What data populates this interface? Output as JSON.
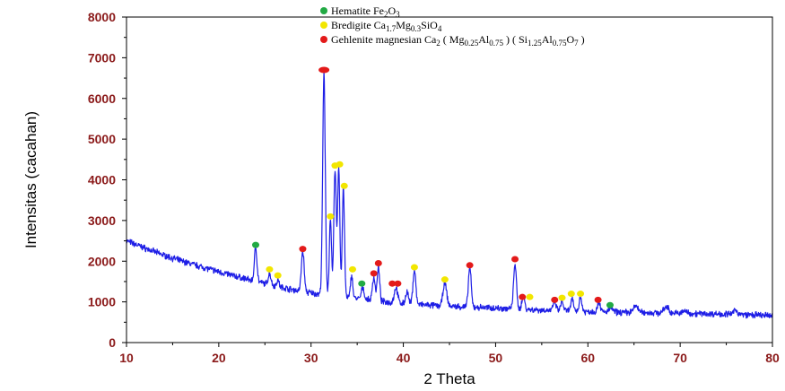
{
  "chart_data": {
    "type": "line",
    "xlabel": "2 Theta",
    "ylabel": "Intensitas (cacahan)",
    "xlim": [
      10,
      80
    ],
    "ylim": [
      0,
      8000
    ],
    "x_ticks": [
      10,
      20,
      30,
      40,
      50,
      60,
      70,
      80
    ],
    "y_ticks": [
      0,
      1000,
      2000,
      3000,
      4000,
      5000,
      6000,
      7000,
      8000
    ],
    "line_color": "#1e1ee6",
    "legend": [
      {
        "name": "hematite",
        "color": "#22aa44",
        "parts": [
          {
            "t": "Hematite Fe",
            "s": false
          },
          {
            "t": "2",
            "s": true
          },
          {
            "t": "O",
            "s": false
          },
          {
            "t": "3",
            "s": true
          }
        ]
      },
      {
        "name": "bredigite",
        "color": "#f2e600",
        "parts": [
          {
            "t": "Bredigite Ca",
            "s": false
          },
          {
            "t": "1.7",
            "s": true
          },
          {
            "t": "Mg",
            "s": false
          },
          {
            "t": "0.3",
            "s": true
          },
          {
            "t": "SiO",
            "s": false
          },
          {
            "t": "4",
            "s": true
          }
        ]
      },
      {
        "name": "gehlenite",
        "color": "#e31a1a",
        "parts": [
          {
            "t": "Gehlenite magnesian Ca",
            "s": false
          },
          {
            "t": "2",
            "s": true
          },
          {
            "t": " ( Mg",
            "s": false
          },
          {
            "t": "0.25",
            "s": true
          },
          {
            "t": "Al",
            "s": false
          },
          {
            "t": "0.75",
            "s": true
          },
          {
            "t": " ) ( Si",
            "s": false
          },
          {
            "t": "1.25",
            "s": true
          },
          {
            "t": "Al",
            "s": false
          },
          {
            "t": "0.75",
            "s": true
          },
          {
            "t": "O",
            "s": false
          },
          {
            "t": "7",
            "s": true
          },
          {
            "t": " )",
            "s": false
          }
        ]
      }
    ],
    "baseline": [
      [
        10,
        2500
      ],
      [
        12,
        2320
      ],
      [
        14,
        2150
      ],
      [
        16,
        2000
      ],
      [
        18,
        1870
      ],
      [
        20,
        1740
      ],
      [
        22,
        1620
      ],
      [
        24,
        1500
      ],
      [
        26,
        1400
      ],
      [
        28,
        1300
      ],
      [
        30,
        1220
      ],
      [
        32,
        1150
      ],
      [
        35,
        1080
      ],
      [
        38,
        1000
      ],
      [
        40,
        960
      ],
      [
        44,
        900
      ],
      [
        50,
        850
      ],
      [
        55,
        800
      ],
      [
        60,
        760
      ],
      [
        65,
        740
      ],
      [
        70,
        720
      ],
      [
        75,
        700
      ],
      [
        80,
        660
      ]
    ],
    "peaks": [
      {
        "x": 24.0,
        "y": 2350,
        "w": 0.14
      },
      {
        "x": 25.5,
        "y": 1700,
        "w": 0.15
      },
      {
        "x": 26.4,
        "y": 1550,
        "w": 0.12
      },
      {
        "x": 29.1,
        "y": 2250,
        "w": 0.15
      },
      {
        "x": 31.4,
        "y": 6600,
        "w": 0.14
      },
      {
        "x": 32.1,
        "y": 3000,
        "w": 0.12
      },
      {
        "x": 32.6,
        "y": 4250,
        "w": 0.13
      },
      {
        "x": 33.0,
        "y": 4300,
        "w": 0.12
      },
      {
        "x": 33.5,
        "y": 3800,
        "w": 0.12
      },
      {
        "x": 34.4,
        "y": 1650,
        "w": 0.12
      },
      {
        "x": 35.6,
        "y": 1350,
        "w": 0.15
      },
      {
        "x": 36.8,
        "y": 1600,
        "w": 0.15
      },
      {
        "x": 37.3,
        "y": 1850,
        "w": 0.13
      },
      {
        "x": 39.2,
        "y": 1350,
        "w": 0.18
      },
      {
        "x": 40.4,
        "y": 1250,
        "w": 0.15
      },
      {
        "x": 41.2,
        "y": 1800,
        "w": 0.15
      },
      {
        "x": 44.5,
        "y": 1450,
        "w": 0.2
      },
      {
        "x": 47.2,
        "y": 1850,
        "w": 0.15
      },
      {
        "x": 52.1,
        "y": 1950,
        "w": 0.15
      },
      {
        "x": 53.0,
        "y": 1150,
        "w": 0.15
      },
      {
        "x": 56.4,
        "y": 1000,
        "w": 0.15
      },
      {
        "x": 57.2,
        "y": 1000,
        "w": 0.15
      },
      {
        "x": 58.3,
        "y": 1050,
        "w": 0.15
      },
      {
        "x": 59.2,
        "y": 1100,
        "w": 0.15
      },
      {
        "x": 61.2,
        "y": 1000,
        "w": 0.15
      },
      {
        "x": 62.5,
        "y": 850,
        "w": 0.2
      },
      {
        "x": 65.2,
        "y": 900,
        "w": 0.25
      },
      {
        "x": 68.5,
        "y": 880,
        "w": 0.25
      },
      {
        "x": 70.5,
        "y": 780,
        "w": 0.2
      },
      {
        "x": 76.0,
        "y": 800,
        "w": 0.2
      }
    ],
    "markers": [
      {
        "x": 24.0,
        "y": 2400,
        "phase": "hematite"
      },
      {
        "x": 25.5,
        "y": 1800,
        "phase": "bredigite"
      },
      {
        "x": 26.4,
        "y": 1650,
        "phase": "bredigite"
      },
      {
        "x": 29.1,
        "y": 2300,
        "phase": "gehlenite"
      },
      {
        "x": 31.4,
        "y": 6700,
        "phase": "gehlenite"
      },
      {
        "x": 32.1,
        "y": 3100,
        "phase": "bredigite"
      },
      {
        "x": 32.6,
        "y": 4350,
        "phase": "bredigite"
      },
      {
        "x": 33.1,
        "y": 4380,
        "phase": "bredigite"
      },
      {
        "x": 33.6,
        "y": 3850,
        "phase": "bredigite"
      },
      {
        "x": 34.5,
        "y": 1800,
        "phase": "bredigite"
      },
      {
        "x": 35.5,
        "y": 1450,
        "phase": "hematite"
      },
      {
        "x": 36.8,
        "y": 1700,
        "phase": "gehlenite"
      },
      {
        "x": 37.3,
        "y": 1950,
        "phase": "gehlenite"
      },
      {
        "x": 38.8,
        "y": 1450,
        "phase": "gehlenite"
      },
      {
        "x": 39.4,
        "y": 1450,
        "phase": "gehlenite"
      },
      {
        "x": 41.2,
        "y": 1850,
        "phase": "bredigite"
      },
      {
        "x": 44.5,
        "y": 1550,
        "phase": "bredigite"
      },
      {
        "x": 47.2,
        "y": 1900,
        "phase": "gehlenite"
      },
      {
        "x": 52.1,
        "y": 2050,
        "phase": "gehlenite"
      },
      {
        "x": 52.9,
        "y": 1120,
        "phase": "gehlenite"
      },
      {
        "x": 53.7,
        "y": 1120,
        "phase": "bredigite"
      },
      {
        "x": 56.4,
        "y": 1050,
        "phase": "gehlenite"
      },
      {
        "x": 57.2,
        "y": 1100,
        "phase": "bredigite"
      },
      {
        "x": 58.2,
        "y": 1200,
        "phase": "bredigite"
      },
      {
        "x": 59.2,
        "y": 1200,
        "phase": "bredigite"
      },
      {
        "x": 61.1,
        "y": 1050,
        "phase": "gehlenite"
      },
      {
        "x": 62.4,
        "y": 920,
        "phase": "hematite"
      }
    ]
  }
}
